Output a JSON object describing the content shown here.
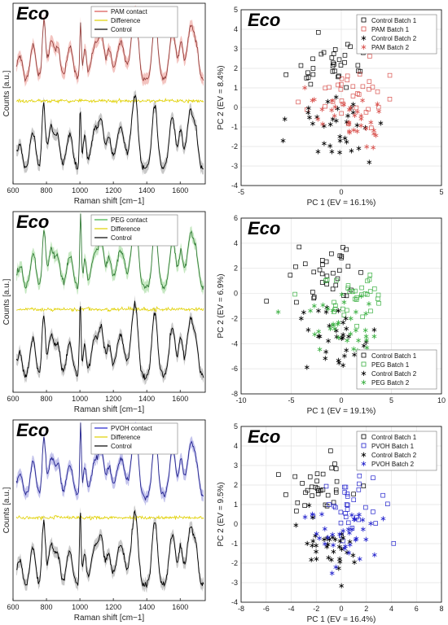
{
  "chart_data": [
    {
      "id": "spectra_pam",
      "type": "line",
      "panel_label": "Eco",
      "xlabel": "Raman shift [cm−1]",
      "ylabel": "Counts [a.u.]",
      "xlim": [
        600,
        1750
      ],
      "x_ticks": [
        "600",
        "800",
        "1000",
        "1200",
        "1400",
        "1600"
      ],
      "legend": {
        "placement": "top-right"
      },
      "series": [
        {
          "name": "PAM contact",
          "color": "#d9534f",
          "band": "#f3c4c0"
        },
        {
          "name": "Difference",
          "color": "#e0d000"
        },
        {
          "name": "Control",
          "color": "#000000",
          "band": "#c8c8c8"
        }
      ]
    },
    {
      "id": "pca_pam",
      "type": "scatter",
      "panel_label": "Eco",
      "xlabel": "PC 1 (EV = 16.1%)",
      "ylabel": "PC 2 (EV = 8.4%)",
      "xlim": [
        -5,
        5
      ],
      "ylim": [
        -4,
        5
      ],
      "x_ticks": [
        -5,
        0,
        5
      ],
      "y_ticks": [
        -4,
        -3,
        -2,
        -1,
        0,
        1,
        2,
        3,
        4,
        5
      ],
      "grid": true,
      "legend": {
        "placement": "top-right"
      },
      "series": [
        {
          "name": "Control Batch 1",
          "marker": "square",
          "color": "#000000"
        },
        {
          "name": "PAM Batch 1",
          "marker": "square",
          "color": "#d9534f"
        },
        {
          "name": "Control Batch 2",
          "marker": "star",
          "color": "#000000"
        },
        {
          "name": "PAM Batch 2",
          "marker": "star",
          "color": "#d9534f"
        }
      ]
    },
    {
      "id": "spectra_peg",
      "type": "line",
      "panel_label": "Eco",
      "xlabel": "Raman shift [cm−1]",
      "ylabel": "Counts [a.u.]",
      "xlim": [
        600,
        1750
      ],
      "x_ticks": [
        "600",
        "800",
        "1000",
        "1200",
        "1400",
        "1600"
      ],
      "legend": {
        "placement": "top-right"
      },
      "series": [
        {
          "name": "PEG contact",
          "color": "#3cb043",
          "band": "#c6e8c2"
        },
        {
          "name": "Difference",
          "color": "#e0d000"
        },
        {
          "name": "Control",
          "color": "#000000",
          "band": "#c8c8c8"
        }
      ]
    },
    {
      "id": "pca_peg",
      "type": "scatter",
      "panel_label": "Eco",
      "xlabel": "PC 1 (EV = 19.1%)",
      "ylabel": "PC 2 (EV = 6.9%)",
      "xlim": [
        -10,
        10
      ],
      "ylim": [
        -8,
        6
      ],
      "x_ticks": [
        -10,
        -5,
        0,
        5,
        10
      ],
      "y_ticks": [
        -8,
        -6,
        -4,
        -2,
        0,
        2,
        4,
        6
      ],
      "grid": true,
      "legend": {
        "placement": "bottom-right"
      },
      "series": [
        {
          "name": "Control Batch 1",
          "marker": "square",
          "color": "#000000"
        },
        {
          "name": "PEG Batch 1",
          "marker": "square",
          "color": "#3cb043"
        },
        {
          "name": "Control Batch 2",
          "marker": "star",
          "color": "#000000"
        },
        {
          "name": "PEG Batch 2",
          "marker": "star",
          "color": "#3cb043"
        }
      ]
    },
    {
      "id": "spectra_pvoh",
      "type": "line",
      "panel_label": "Eco",
      "xlabel": "Raman shift [cm−1]",
      "ylabel": "Counts [a.u.]",
      "xlim": [
        600,
        1750
      ],
      "x_ticks": [
        "600",
        "800",
        "1000",
        "1200",
        "1400",
        "1600"
      ],
      "legend": {
        "placement": "top-right"
      },
      "series": [
        {
          "name": "PVOH contact",
          "color": "#2222cc",
          "band": "#c4c4ec"
        },
        {
          "name": "Difference",
          "color": "#e0d000"
        },
        {
          "name": "Control",
          "color": "#000000",
          "band": "#c8c8c8"
        }
      ]
    },
    {
      "id": "pca_pvoh",
      "type": "scatter",
      "panel_label": "Eco",
      "xlabel": "PC 1 (EV = 16.4%)",
      "ylabel": "PC 2 (EV = 9.5%)",
      "xlim": [
        -8,
        8
      ],
      "ylim": [
        -4,
        5
      ],
      "x_ticks": [
        -8,
        -6,
        -4,
        -2,
        0,
        2,
        4,
        6,
        8
      ],
      "y_ticks": [
        -4,
        -3,
        -2,
        -1,
        0,
        1,
        2,
        3,
        4,
        5
      ],
      "grid": true,
      "legend": {
        "placement": "top-right"
      },
      "series": [
        {
          "name": "Control Batch 1",
          "marker": "square",
          "color": "#000000"
        },
        {
          "name": "PVOH Batch 1",
          "marker": "square",
          "color": "#2222cc"
        },
        {
          "name": "Control Batch 2",
          "marker": "star",
          "color": "#000000"
        },
        {
          "name": "PVOH Batch 2",
          "marker": "star",
          "color": "#2222cc"
        }
      ]
    }
  ]
}
